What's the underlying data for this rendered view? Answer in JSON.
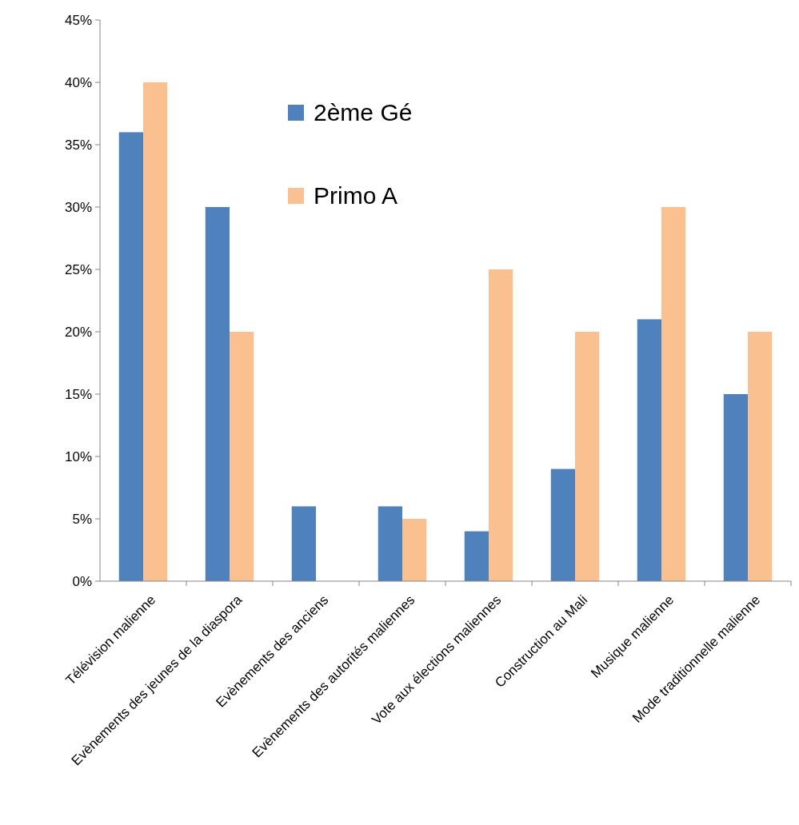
{
  "chart_data": {
    "type": "bar",
    "categories": [
      "Télévision malienne",
      "Evènements des jeunes de la diaspora",
      "Evènements des anciens",
      "Evènements des autorités maliennes",
      "Vote aux élections maliennes",
      "Construction au Mali",
      "Musique malienne",
      "Mode traditionnelle malienne"
    ],
    "series": [
      {
        "name": "2ème Gé",
        "color": "#4f81bd",
        "values": [
          36,
          30,
          6,
          6,
          4,
          9,
          21,
          15
        ]
      },
      {
        "name": "Primo A",
        "color": "#fac090",
        "values": [
          40,
          20,
          0,
          5,
          25,
          20,
          30,
          20
        ]
      }
    ],
    "ylim": [
      0,
      45
    ],
    "yticks": [
      {
        "value": 0,
        "label": "0%"
      },
      {
        "value": 5,
        "label": "5%"
      },
      {
        "value": 10,
        "label": "10%"
      },
      {
        "value": 15,
        "label": "15%"
      },
      {
        "value": 20,
        "label": "20%"
      },
      {
        "value": 25,
        "label": "25%"
      },
      {
        "value": 30,
        "label": "30%"
      },
      {
        "value": 35,
        "label": "35%"
      },
      {
        "value": 40,
        "label": "40%"
      },
      {
        "value": 45,
        "label": "45%"
      }
    ],
    "grid": false,
    "legend": "top"
  }
}
